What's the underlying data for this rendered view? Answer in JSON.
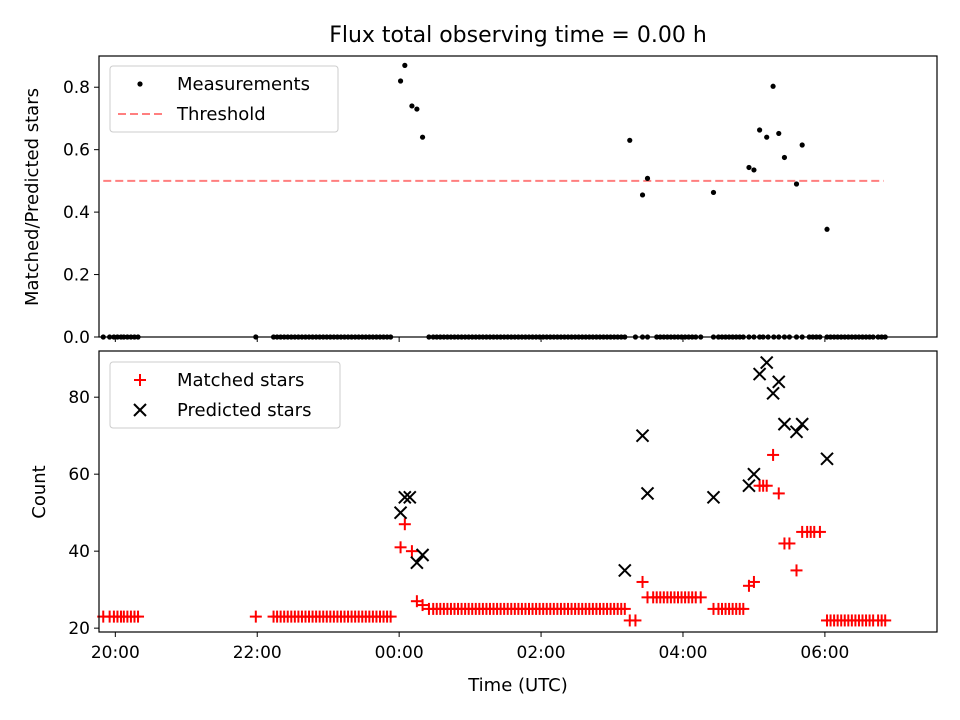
{
  "figure": {
    "title": "Flux total observing time = 0.00 h",
    "xlabel": "Time (UTC)"
  },
  "chart_data": [
    {
      "type": "scatter",
      "panel": "top",
      "ylabel": "Matched/Predicted stars",
      "x_axis": "time (hours, UTC)",
      "xlim": [
        19.77,
        31.58
      ],
      "ylim": [
        0.0,
        0.9
      ],
      "yticks": [
        0.0,
        0.2,
        0.4,
        0.6,
        0.8
      ],
      "ytick_labels": [
        "0.0",
        "0.2",
        "0.4",
        "0.6",
        "0.8"
      ],
      "legend_position": "upper-left",
      "series": [
        {
          "name": "Measurements",
          "marker": "dot",
          "color": "#000000",
          "x": [
            19.83,
            19.92,
            19.98,
            20.03,
            20.08,
            20.12,
            20.17,
            20.22,
            20.27,
            20.32,
            21.98,
            22.23,
            22.28,
            22.33,
            22.38,
            22.43,
            22.48,
            22.53,
            22.58,
            22.63,
            22.68,
            22.73,
            22.78,
            22.83,
            22.88,
            22.93,
            22.98,
            23.03,
            23.08,
            23.13,
            23.18,
            23.23,
            23.28,
            23.33,
            23.38,
            23.43,
            23.48,
            23.53,
            23.58,
            23.63,
            23.68,
            23.73,
            23.78,
            23.83,
            23.88,
            24.02,
            24.08,
            24.18,
            24.25,
            24.33,
            24.42,
            24.48,
            24.53,
            24.58,
            24.63,
            24.68,
            24.73,
            24.78,
            24.83,
            24.88,
            24.93,
            24.98,
            25.03,
            25.08,
            25.13,
            25.18,
            25.23,
            25.28,
            25.33,
            25.38,
            25.43,
            25.48,
            25.53,
            25.58,
            25.63,
            25.68,
            25.73,
            25.78,
            25.83,
            25.88,
            25.93,
            25.98,
            26.03,
            26.08,
            26.13,
            26.18,
            26.23,
            26.28,
            26.33,
            26.38,
            26.43,
            26.48,
            26.53,
            26.58,
            26.63,
            26.68,
            26.73,
            26.78,
            26.83,
            26.88,
            26.93,
            26.98,
            27.03,
            27.08,
            27.13,
            27.18,
            27.25,
            27.33,
            27.43,
            27.5,
            27.63,
            27.68,
            27.73,
            27.78,
            27.83,
            27.88,
            27.93,
            27.98,
            28.03,
            28.08,
            28.13,
            28.18,
            28.25,
            28.43,
            28.5,
            28.55,
            28.6,
            28.65,
            28.7,
            28.75,
            28.8,
            28.85,
            28.93,
            29.0,
            29.08,
            29.13,
            29.2,
            29.28,
            29.35,
            29.43,
            29.5,
            29.6,
            29.68,
            29.78,
            29.83,
            29.88,
            29.93,
            30.03,
            30.08,
            30.13,
            30.18,
            30.23,
            30.28,
            30.33,
            30.38,
            30.43,
            30.48,
            30.53,
            30.58,
            30.63,
            30.68,
            30.75,
            30.8,
            30.85
          ],
          "y": [
            0.0,
            0.0,
            0.0,
            0.0,
            0.0,
            0.0,
            0.0,
            0.0,
            0.0,
            0.0,
            0.0,
            0.0,
            0.0,
            0.0,
            0.0,
            0.0,
            0.0,
            0.0,
            0.0,
            0.0,
            0.0,
            0.0,
            0.0,
            0.0,
            0.0,
            0.0,
            0.0,
            0.0,
            0.0,
            0.0,
            0.0,
            0.0,
            0.0,
            0.0,
            0.0,
            0.0,
            0.0,
            0.0,
            0.0,
            0.0,
            0.0,
            0.0,
            0.0,
            0.0,
            0.0,
            0.82,
            0.87,
            0.74,
            0.73,
            0.64,
            0.0,
            0.0,
            0.0,
            0.0,
            0.0,
            0.0,
            0.0,
            0.0,
            0.0,
            0.0,
            0.0,
            0.0,
            0.0,
            0.0,
            0.0,
            0.0,
            0.0,
            0.0,
            0.0,
            0.0,
            0.0,
            0.0,
            0.0,
            0.0,
            0.0,
            0.0,
            0.0,
            0.0,
            0.0,
            0.0,
            0.0,
            0.0,
            0.0,
            0.0,
            0.0,
            0.0,
            0.0,
            0.0,
            0.0,
            0.0,
            0.0,
            0.0,
            0.0,
            0.0,
            0.0,
            0.0,
            0.0,
            0.0,
            0.0,
            0.0,
            0.0,
            0.0,
            0.0,
            0.0,
            0.0,
            0.0,
            0.63,
            0.0,
            0.0,
            0.0,
            0.0,
            0.0,
            0.0,
            0.0,
            0.0,
            0.0,
            0.0,
            0.0,
            0.0,
            0.0,
            0.0,
            0.0,
            0.0,
            0.0,
            0.0,
            0.0,
            0.0,
            0.0,
            0.0,
            0.0,
            0.0,
            0.0,
            0.0,
            0.0,
            0.0,
            0.0,
            0.0,
            0.0,
            0.0,
            0.0,
            0.0,
            0.0,
            0.0,
            0.0,
            0.0,
            0.0,
            0.0,
            0.0,
            0.0,
            0.0,
            0.0,
            0.0,
            0.0,
            0.0,
            0.0,
            0.0,
            0.0,
            0.0,
            0.0,
            0.0,
            0.0,
            0.0,
            0.0,
            0.0
          ],
          "extra_points": [
            [
              27.43,
              0.455
            ],
            [
              27.5,
              0.508
            ],
            [
              28.43,
              0.463
            ],
            [
              28.93,
              0.543
            ],
            [
              29.0,
              0.535
            ],
            [
              29.08,
              0.663
            ],
            [
              29.18,
              0.64
            ],
            [
              29.27,
              0.803
            ],
            [
              29.35,
              0.652
            ],
            [
              29.43,
              0.575
            ],
            [
              29.6,
              0.49
            ],
            [
              29.68,
              0.615
            ],
            [
              30.03,
              0.345
            ]
          ]
        },
        {
          "name": "Threshold",
          "style": "dashed-line",
          "color": "#ff7f7f",
          "x": [
            19.83,
            30.83
          ],
          "y": [
            0.5,
            0.5
          ]
        }
      ]
    },
    {
      "type": "scatter",
      "panel": "bottom",
      "ylabel": "Count",
      "xlabel": "Time (UTC)",
      "x_axis": "time (hours, UTC)",
      "xlim": [
        19.77,
        31.58
      ],
      "ylim": [
        19.0,
        92.0
      ],
      "xticks": [
        20,
        22,
        24,
        26,
        28,
        30
      ],
      "xtick_labels": [
        "20:00",
        "22:00",
        "00:00",
        "02:00",
        "04:00",
        "06:00"
      ],
      "yticks": [
        20,
        40,
        60,
        80
      ],
      "ytick_labels": [
        "20",
        "40",
        "60",
        "80"
      ],
      "legend_position": "upper-left",
      "series": [
        {
          "name": "Matched stars",
          "marker": "plus",
          "color": "#ff0000",
          "x": [
            19.83,
            19.92,
            19.98,
            20.03,
            20.08,
            20.12,
            20.17,
            20.22,
            20.27,
            20.32,
            21.98,
            22.23,
            22.28,
            22.33,
            22.38,
            22.43,
            22.48,
            22.53,
            22.58,
            22.63,
            22.68,
            22.73,
            22.78,
            22.83,
            22.88,
            22.93,
            22.98,
            23.03,
            23.08,
            23.13,
            23.18,
            23.23,
            23.28,
            23.33,
            23.38,
            23.43,
            23.48,
            23.53,
            23.58,
            23.63,
            23.68,
            23.73,
            23.78,
            23.83,
            23.88,
            24.02,
            24.08,
            24.18,
            24.25,
            24.33,
            24.42,
            24.48,
            24.53,
            24.58,
            24.63,
            24.68,
            24.73,
            24.78,
            24.83,
            24.88,
            24.93,
            24.98,
            25.03,
            25.08,
            25.13,
            25.18,
            25.23,
            25.28,
            25.33,
            25.38,
            25.43,
            25.48,
            25.53,
            25.58,
            25.63,
            25.68,
            25.73,
            25.78,
            25.83,
            25.88,
            25.93,
            25.98,
            26.03,
            26.08,
            26.13,
            26.18,
            26.23,
            26.28,
            26.33,
            26.38,
            26.43,
            26.48,
            26.53,
            26.58,
            26.63,
            26.68,
            26.73,
            26.78,
            26.83,
            26.88,
            26.93,
            26.98,
            27.03,
            27.08,
            27.13,
            27.18,
            27.25,
            27.33,
            27.43,
            27.5,
            27.58,
            27.63,
            27.68,
            27.73,
            27.78,
            27.83,
            27.88,
            27.93,
            27.98,
            28.03,
            28.08,
            28.13,
            28.18,
            28.25,
            28.43,
            28.5,
            28.55,
            28.6,
            28.65,
            28.7,
            28.75,
            28.8,
            28.85,
            28.93,
            29.0,
            29.08,
            29.13,
            29.18,
            29.27,
            29.35,
            29.43,
            29.5,
            29.6,
            29.68,
            29.75,
            29.8,
            29.85,
            29.93,
            30.03,
            30.08,
            30.13,
            30.18,
            30.23,
            30.28,
            30.33,
            30.38,
            30.43,
            30.48,
            30.53,
            30.58,
            30.63,
            30.68,
            30.75,
            30.8,
            30.85
          ],
          "y": [
            23,
            23,
            23,
            23,
            23,
            23,
            23,
            23,
            23,
            23,
            23,
            23,
            23,
            23,
            23,
            23,
            23,
            23,
            23,
            23,
            23,
            23,
            23,
            23,
            23,
            23,
            23,
            23,
            23,
            23,
            23,
            23,
            23,
            23,
            23,
            23,
            23,
            23,
            23,
            23,
            23,
            23,
            23,
            23,
            23,
            41,
            47,
            40,
            27,
            26,
            25,
            25,
            25,
            25,
            25,
            25,
            25,
            25,
            25,
            25,
            25,
            25,
            25,
            25,
            25,
            25,
            25,
            25,
            25,
            25,
            25,
            25,
            25,
            25,
            25,
            25,
            25,
            25,
            25,
            25,
            25,
            25,
            25,
            25,
            25,
            25,
            25,
            25,
            25,
            25,
            25,
            25,
            25,
            25,
            25,
            25,
            25,
            25,
            25,
            25,
            25,
            25,
            25,
            25,
            25,
            25,
            22,
            22,
            32,
            28,
            28,
            28,
            28,
            28,
            28,
            28,
            28,
            28,
            28,
            28,
            28,
            28,
            28,
            28,
            25,
            25,
            25,
            25,
            25,
            25,
            25,
            25,
            25,
            31,
            32,
            57,
            57,
            57,
            65,
            55,
            42,
            42,
            35,
            45,
            45,
            45,
            45,
            45,
            22,
            22,
            22,
            22,
            22,
            22,
            22,
            22,
            22,
            22,
            22,
            22,
            22,
            22,
            22,
            22,
            22
          ]
        },
        {
          "name": "Predicted stars",
          "marker": "x",
          "color": "#000000",
          "x": [
            24.02,
            24.08,
            24.15,
            24.25,
            24.33,
            27.18,
            27.43,
            27.5,
            28.43,
            28.93,
            29.0,
            29.08,
            29.18,
            29.27,
            29.35,
            29.43,
            29.6,
            29.68,
            30.03
          ],
          "y": [
            50,
            54,
            54,
            37,
            39,
            35,
            70,
            55,
            54,
            57,
            60,
            86,
            89,
            81,
            84,
            73,
            71,
            73,
            64
          ]
        }
      ]
    }
  ]
}
